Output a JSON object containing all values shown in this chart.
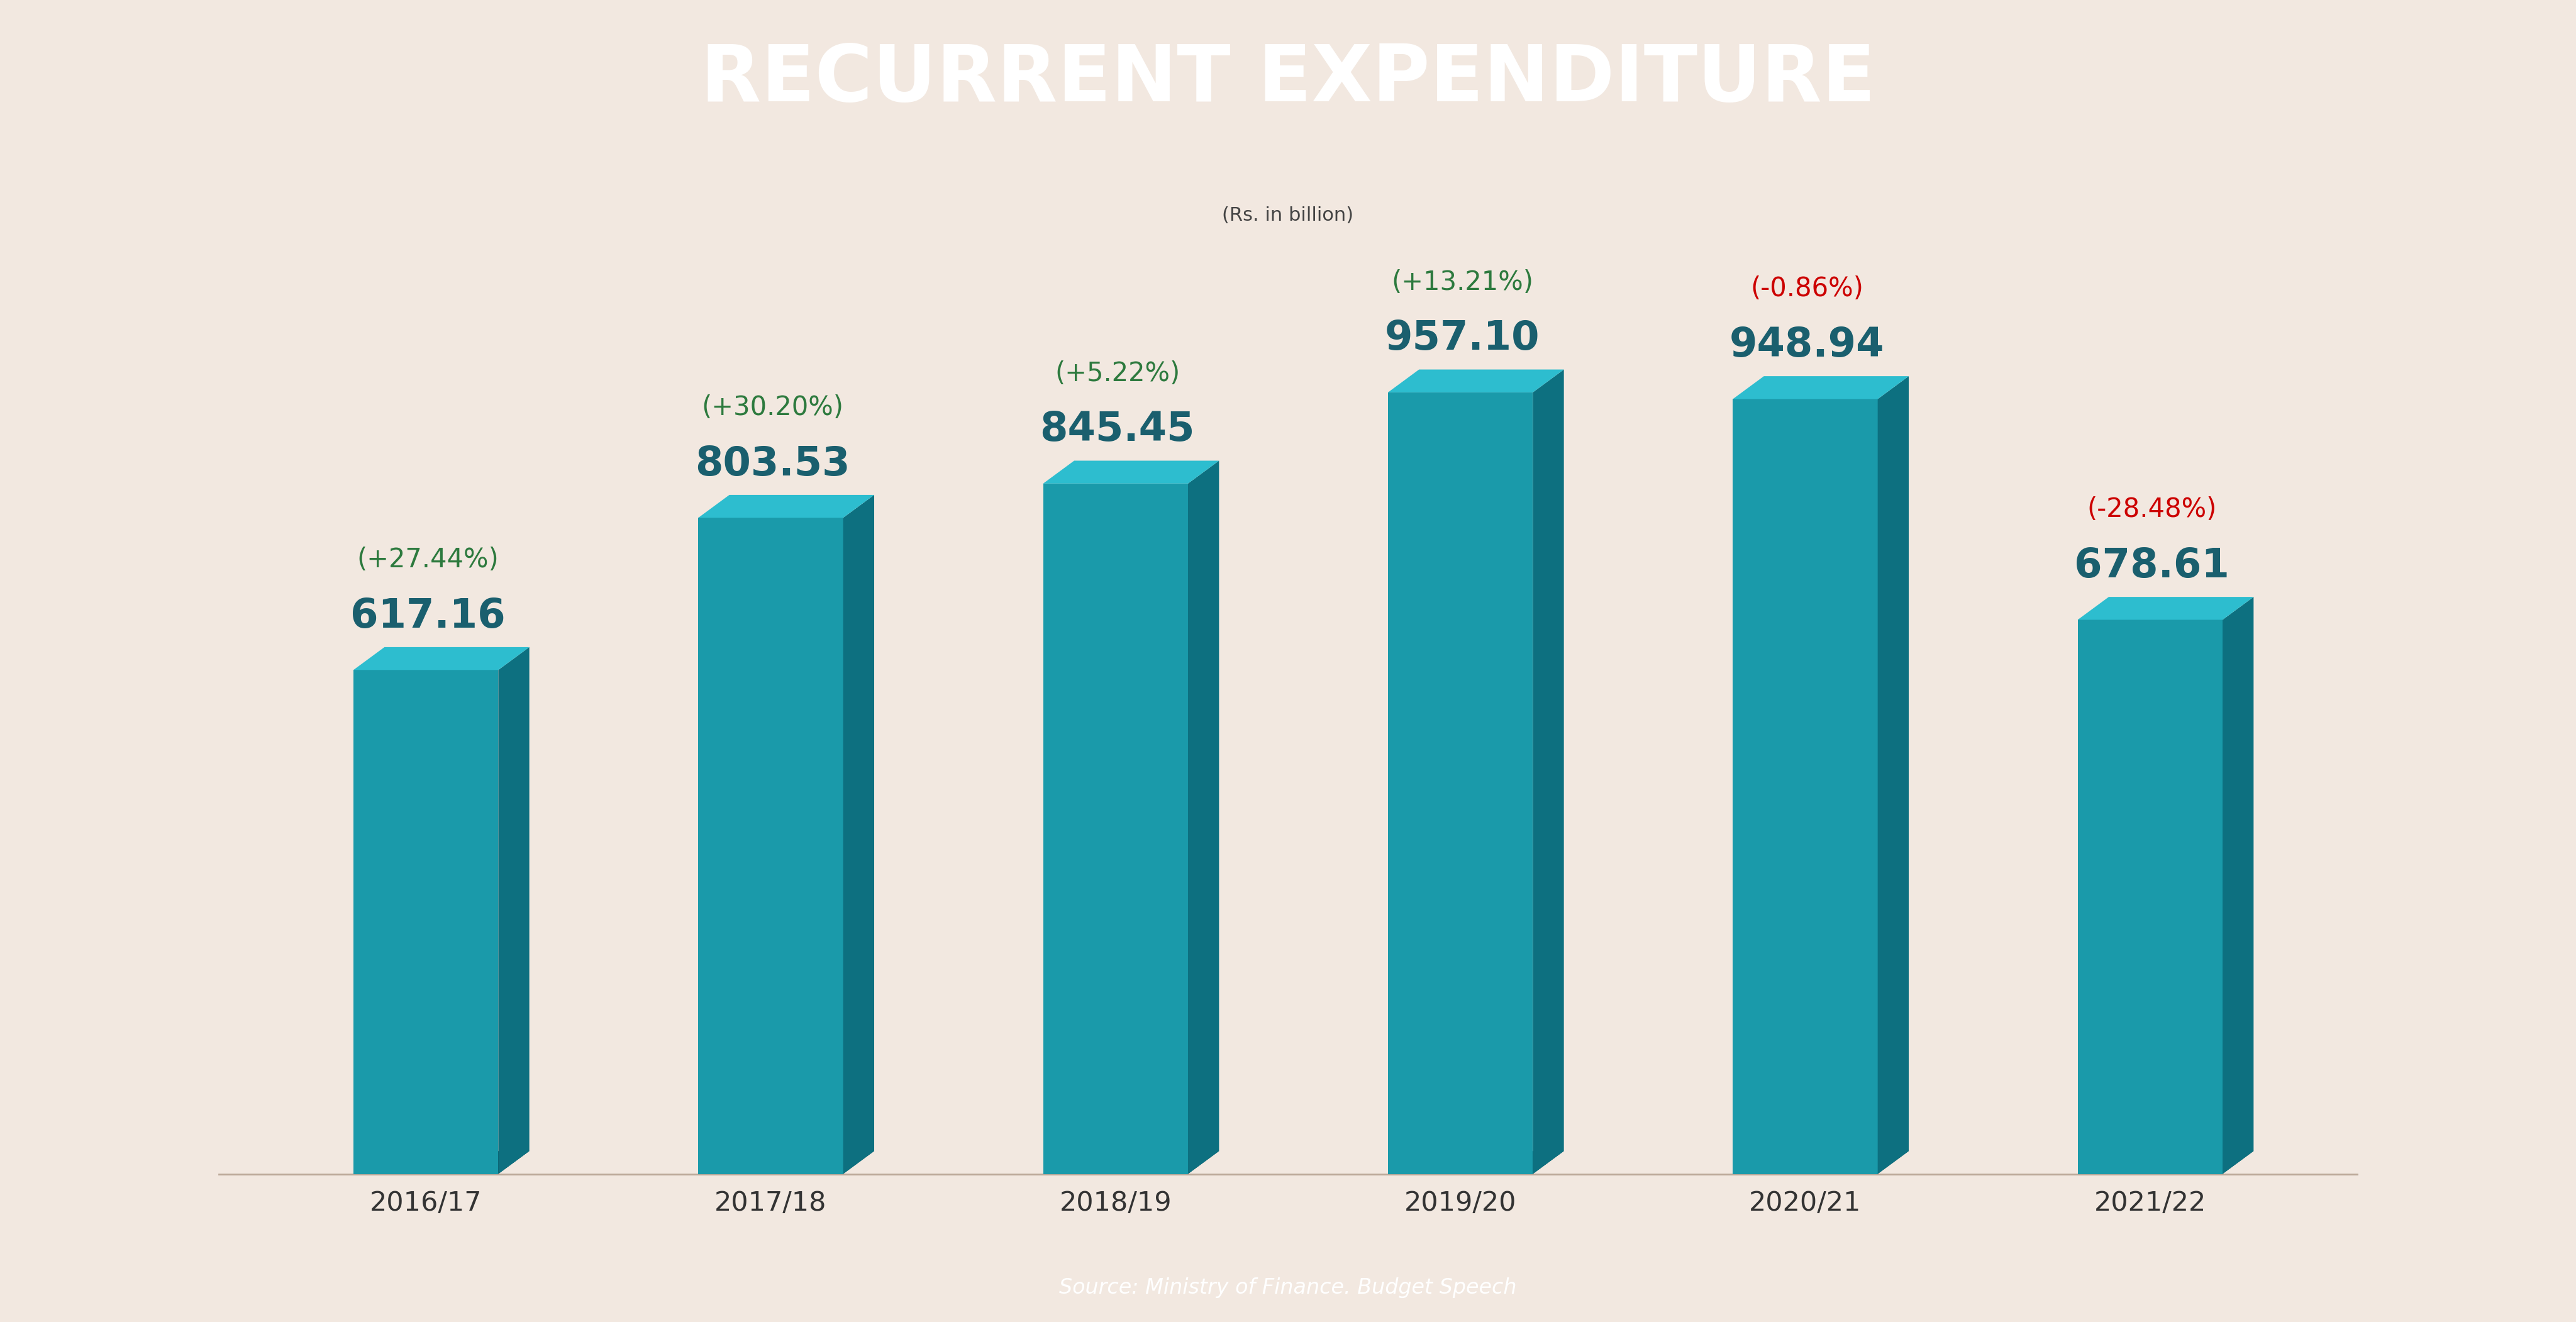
{
  "title": "RECURRENT EXPENDITURE",
  "subtitle": "(Rs. in billion)",
  "source": "Source: Ministry of Finance. Budget Speech",
  "background_color": "#f2e8e0",
  "header_color": "#5c3d1e",
  "header_text_color": "#ffffff",
  "footer_color": "#5c3d1e",
  "footer_text_color": "#ffffff",
  "bar_face_color": "#1a9aaa",
  "bar_top_color": "#2dbdcf",
  "bar_side_color": "#0d7080",
  "categories": [
    "2016/17",
    "2017/18",
    "2018/19",
    "2019/20",
    "2020/21",
    "2021/22"
  ],
  "values": [
    617.16,
    803.53,
    845.45,
    957.1,
    948.94,
    678.61
  ],
  "pct_changes": [
    "+27.44%",
    "+30.20%",
    "+5.22%",
    "+13.21%",
    "-0.86%",
    "-28.48%"
  ],
  "pct_positive": [
    true,
    true,
    true,
    true,
    false,
    false
  ],
  "value_color": "#1a5f6e",
  "pct_pos_color": "#2d7a3e",
  "pct_neg_color": "#cc0000",
  "xlabel_color": "#333333",
  "subtitle_box_color": "#c8b49a",
  "subtitle_text_color": "#444444"
}
